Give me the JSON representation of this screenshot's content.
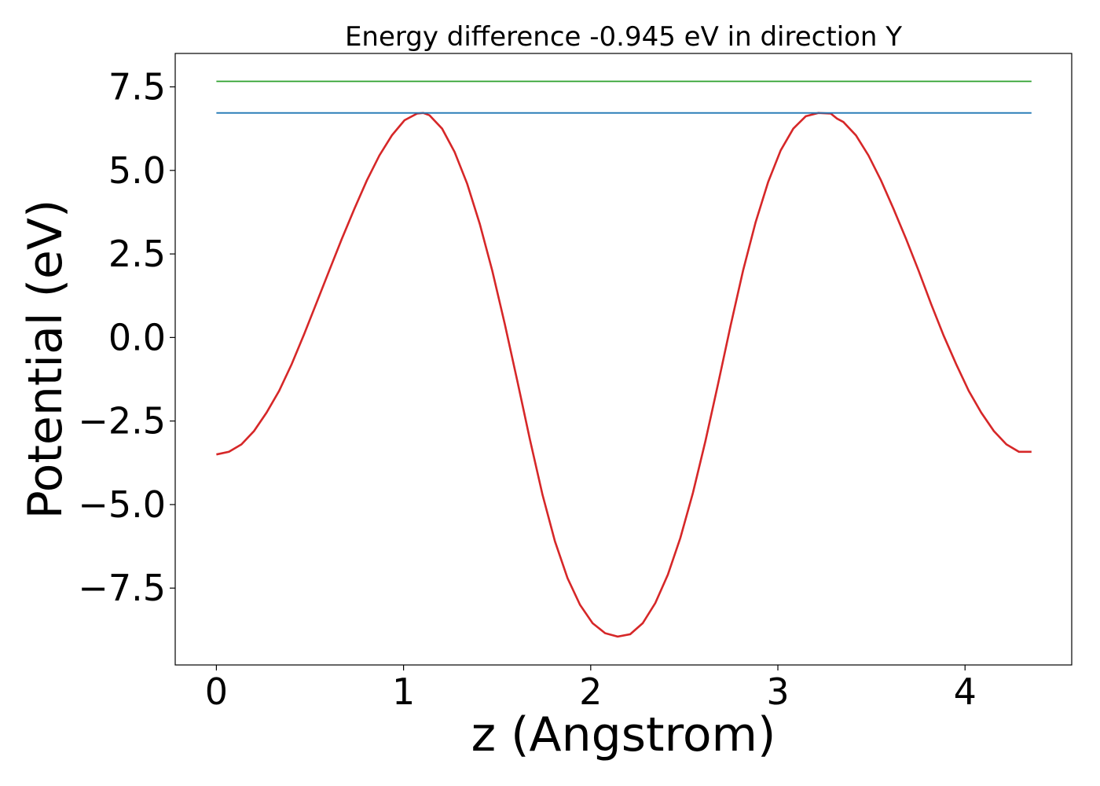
{
  "chart_data": {
    "type": "line",
    "title": "Energy difference -0.945 eV in direction Y",
    "xlabel": "z (Angstrom)",
    "ylabel": "Potential (eV)",
    "xlim": [
      -0.22,
      4.57
    ],
    "ylim": [
      -9.8,
      8.5
    ],
    "xticks": [
      0,
      1,
      2,
      3,
      4
    ],
    "xtick_labels": [
      "0",
      "1",
      "2",
      "3",
      "4"
    ],
    "yticks": [
      -7.5,
      -5.0,
      -2.5,
      0.0,
      2.5,
      5.0,
      7.5
    ],
    "ytick_labels": [
      "−7.5",
      "−5.0",
      "−2.5",
      "0.0",
      "2.5",
      "5.0",
      "7.5"
    ],
    "grid": false,
    "legend": "none",
    "series": [
      {
        "color": "#d62728",
        "x": [
          0.0,
          0.067,
          0.134,
          0.201,
          0.268,
          0.335,
          0.402,
          0.469,
          0.536,
          0.603,
          0.67,
          0.737,
          0.804,
          0.871,
          0.938,
          1.005,
          1.072,
          1.105,
          1.139,
          1.206,
          1.273,
          1.34,
          1.407,
          1.474,
          1.541,
          1.608,
          1.675,
          1.742,
          1.809,
          1.876,
          1.943,
          2.01,
          2.077,
          2.144,
          2.211,
          2.278,
          2.345,
          2.412,
          2.479,
          2.546,
          2.613,
          2.68,
          2.747,
          2.814,
          2.881,
          2.948,
          3.015,
          3.082,
          3.149,
          3.216,
          3.283,
          3.316,
          3.35,
          3.417,
          3.484,
          3.551,
          3.618,
          3.685,
          3.752,
          3.819,
          3.886,
          3.953,
          4.02,
          4.087,
          4.154,
          4.221,
          4.288,
          4.355
        ],
        "y": [
          -3.5,
          -3.42,
          -3.2,
          -2.8,
          -2.25,
          -1.6,
          -0.8,
          0.1,
          1.05,
          2.0,
          2.95,
          3.85,
          4.7,
          5.45,
          6.05,
          6.5,
          6.7,
          6.72,
          6.65,
          6.25,
          5.55,
          4.6,
          3.4,
          2.0,
          0.4,
          -1.3,
          -3.05,
          -4.7,
          -6.1,
          -7.2,
          -8.0,
          -8.55,
          -8.85,
          -8.95,
          -8.88,
          -8.55,
          -7.95,
          -7.1,
          -6.0,
          -4.65,
          -3.1,
          -1.4,
          0.35,
          2.0,
          3.45,
          4.65,
          5.6,
          6.25,
          6.62,
          6.72,
          6.7,
          6.55,
          6.45,
          6.05,
          5.45,
          4.7,
          3.85,
          2.95,
          2.0,
          1.0,
          0.05,
          -0.8,
          -1.6,
          -2.25,
          -2.8,
          -3.2,
          -3.42,
          -3.42
        ]
      },
      {
        "color": "#1f77b4",
        "x": [
          0.0,
          4.355
        ],
        "y": [
          6.72,
          6.72
        ]
      },
      {
        "color": "#2ca02c",
        "x": [
          0.0,
          4.355
        ],
        "y": [
          7.665,
          7.665
        ]
      }
    ]
  }
}
